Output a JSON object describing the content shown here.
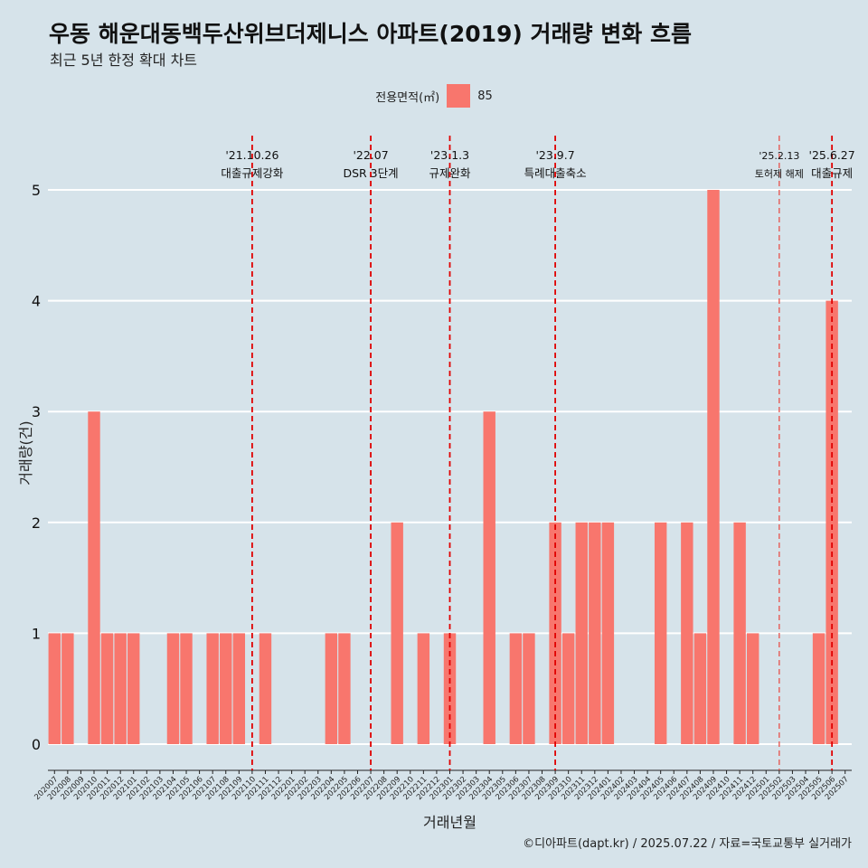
{
  "title": "우동 해운대동백두산위브더제니스 아파트(2019) 거래량 변화 흐름",
  "subtitle": "최근 5년 한정 확대 차트",
  "caption": "©디아파트(dapt.kr) / 2025.07.22 / 자료=국토교통부 실거래가",
  "legend": {
    "title": "전용면적(㎡)",
    "items": [
      {
        "label": "85",
        "color": "#f8766d"
      }
    ]
  },
  "chart_data": {
    "type": "bar",
    "xlabel": "거래년월",
    "ylabel": "거래량(건)",
    "ylim": [
      0,
      5
    ],
    "yticks": [
      0,
      1,
      2,
      3,
      4,
      5
    ],
    "grid": true,
    "legend_position": "top",
    "bar_color": "#f8766d",
    "categories": [
      "202007",
      "202008",
      "202009",
      "202010",
      "202011",
      "202012",
      "202101",
      "202102",
      "202103",
      "202104",
      "202105",
      "202106",
      "202107",
      "202108",
      "202109",
      "202110",
      "202111",
      "202112",
      "202201",
      "202202",
      "202203",
      "202204",
      "202205",
      "202206",
      "202207",
      "202208",
      "202209",
      "202210",
      "202211",
      "202212",
      "202301",
      "202302",
      "202303",
      "202304",
      "202305",
      "202306",
      "202307",
      "202308",
      "202309",
      "202310",
      "202311",
      "202312",
      "202401",
      "202402",
      "202403",
      "202404",
      "202405",
      "202406",
      "202407",
      "202408",
      "202409",
      "202410",
      "202411",
      "202412",
      "202501",
      "202502",
      "202503",
      "202504",
      "202505",
      "202506",
      "202507"
    ],
    "series": [
      {
        "name": "85",
        "values": [
          1,
          1,
          0,
          3,
          1,
          1,
          1,
          0,
          0,
          1,
          1,
          0,
          1,
          1,
          1,
          0,
          1,
          0,
          0,
          0,
          0,
          1,
          1,
          0,
          0,
          0,
          2,
          0,
          1,
          0,
          1,
          0,
          0,
          3,
          0,
          1,
          1,
          0,
          2,
          1,
          2,
          2,
          2,
          0,
          0,
          0,
          2,
          0,
          2,
          1,
          5,
          0,
          2,
          1,
          0,
          0,
          0,
          0,
          1,
          4,
          0
        ]
      }
    ],
    "annotations": [
      {
        "at": "202110",
        "date": "'21.10.26",
        "text": "대출규제강화",
        "style": "solid"
      },
      {
        "at": "202207",
        "date": "'22.07",
        "text": "DSR 3단계",
        "style": "solid"
      },
      {
        "at": "202301",
        "date": "'23.1.3",
        "text": "규제완화",
        "style": "solid"
      },
      {
        "at": "202309",
        "date": "'23.9.7",
        "text": "특례대출축소",
        "style": "solid"
      },
      {
        "at": "202502",
        "date": "'25.2.13",
        "text": "토허제 해제",
        "style": "light"
      },
      {
        "at": "202506",
        "date": "'25.6.27",
        "text": "대출규제",
        "style": "solid"
      }
    ]
  }
}
